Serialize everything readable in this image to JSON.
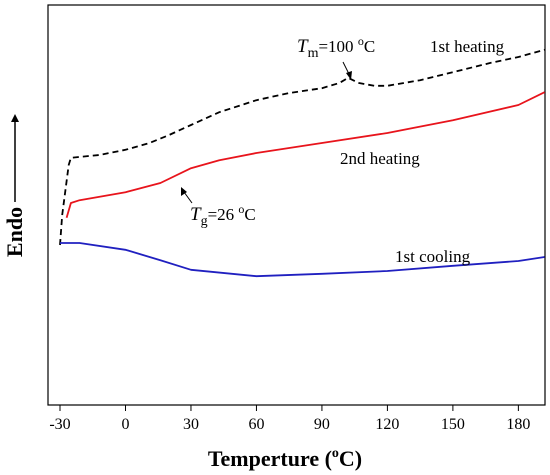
{
  "chart_data": {
    "type": "line",
    "xlabel": {
      "pre": "Temperture (",
      "sup": "o",
      "post": "C)"
    },
    "ylabel": "Endo",
    "xlim": [
      -35.5,
      192.2
    ],
    "ylim": [
      0,
      100
    ],
    "xticks": [
      -30,
      0,
      30,
      60,
      90,
      120,
      150,
      180
    ],
    "series": [
      {
        "name": "1st heating",
        "color": "#000000",
        "linestyle": "dashed",
        "x": [
          -30,
          -29,
          -26,
          -25,
          -12,
          0,
          11,
          20,
          30,
          43,
          60,
          75,
          90,
          98,
          102,
          107,
          114,
          120,
          135,
          150,
          167,
          180,
          192
        ],
        "values": [
          40,
          47.5,
          60,
          61.8,
          62.5,
          63.8,
          65.5,
          67.5,
          70,
          73.2,
          76.2,
          78,
          79.2,
          80.5,
          81.8,
          80.5,
          79.8,
          79.8,
          81.2,
          83.2,
          85.5,
          87,
          88.8
        ]
      },
      {
        "name": "2nd heating",
        "color": "#e8141c",
        "linestyle": "solid",
        "x": [
          -27,
          -25,
          -21,
          0,
          16,
          30,
          43,
          60,
          90,
          120,
          150,
          180,
          192
        ],
        "values": [
          46.8,
          50.5,
          51.2,
          53.2,
          55.5,
          59.2,
          61.2,
          63,
          65.5,
          68,
          71.2,
          75,
          78.2
        ]
      },
      {
        "name": "1st cooling",
        "color": "#2020c0",
        "linestyle": "solid",
        "x": [
          -30,
          -21,
          0,
          16,
          30,
          60,
          90,
          120,
          150,
          180,
          192
        ],
        "values": [
          40.5,
          40.5,
          38.8,
          36.2,
          33.8,
          32.2,
          32.8,
          33.5,
          34.8,
          36,
          37
        ]
      }
    ],
    "annotations": [
      {
        "T": "T",
        "sub": "m",
        "text": "=100 ",
        "sup": "o",
        "unit": "C"
      },
      {
        "T": "T",
        "sub": "g",
        "text": "=26 ",
        "sup": "o",
        "unit": "C"
      }
    ]
  }
}
